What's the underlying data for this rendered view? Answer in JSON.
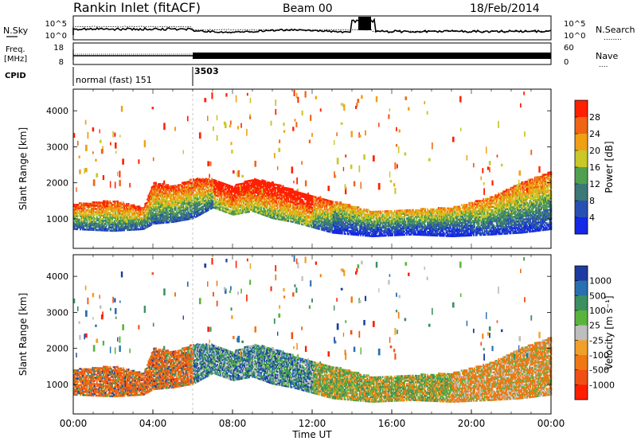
{
  "header": {
    "station": "Rankin Inlet (fitACF)",
    "beam": "Beam 00",
    "date": "18/Feb/2014"
  },
  "nsky_panel": {
    "left_label": "N.Sky",
    "right_label": "N.Search",
    "right_label_dots": "........",
    "left_ticks": [
      "10^5",
      "10^0"
    ],
    "right_ticks": [
      "10^5",
      "10^0"
    ]
  },
  "freq_panel": {
    "left_label_line1": "Freq.",
    "left_label_line2": "[MHz]",
    "right_label": "Nave",
    "right_label_dots": "....",
    "left_ticks": [
      "18",
      "8"
    ],
    "right_ticks": [
      "60",
      "0"
    ]
  },
  "cpid_panel": {
    "label": "CPID",
    "segments": [
      "normal (fast) 151",
      "3503"
    ]
  },
  "chart_data": [
    {
      "type": "heatmap",
      "name": "power",
      "ylabel": "Slant Range [km]",
      "ylim": [
        180,
        4600
      ],
      "yticks": [
        1000,
        2000,
        3000,
        4000
      ],
      "xlim": [
        0,
        24
      ],
      "colorbar_label": "Power [dB]",
      "colorbar_ticks": [
        "4",
        "8",
        "12",
        "16",
        "20",
        "24",
        "28"
      ],
      "colorbar_colors": [
        "#1428e6",
        "#2850b4",
        "#3c7878",
        "#50a050",
        "#c8c828",
        "#f0a014",
        "#f06414",
        "#ff2000"
      ]
    },
    {
      "type": "heatmap",
      "name": "velocity",
      "ylabel": "Slant Range [km]",
      "ylim": [
        180,
        4600
      ],
      "yticks": [
        1000,
        2000,
        3000,
        4000
      ],
      "xlim": [
        0,
        24
      ],
      "xlabel": "Time UT",
      "xticks": [
        "00:00",
        "04:00",
        "08:00",
        "12:00",
        "16:00",
        "20:00",
        "00:00"
      ],
      "colorbar_label": "Velocity [m s⁻¹]",
      "colorbar_ticks": [
        "1000",
        "500",
        "100",
        "25",
        "-25",
        "-100",
        "-500",
        "-1000"
      ],
      "colorbar_colors": [
        "#1e3ca0",
        "#2870b0",
        "#3c9060",
        "#5ab43c",
        "#bebebe",
        "#f0a028",
        "#f07814",
        "#f05014",
        "#ff1e00"
      ]
    }
  ]
}
